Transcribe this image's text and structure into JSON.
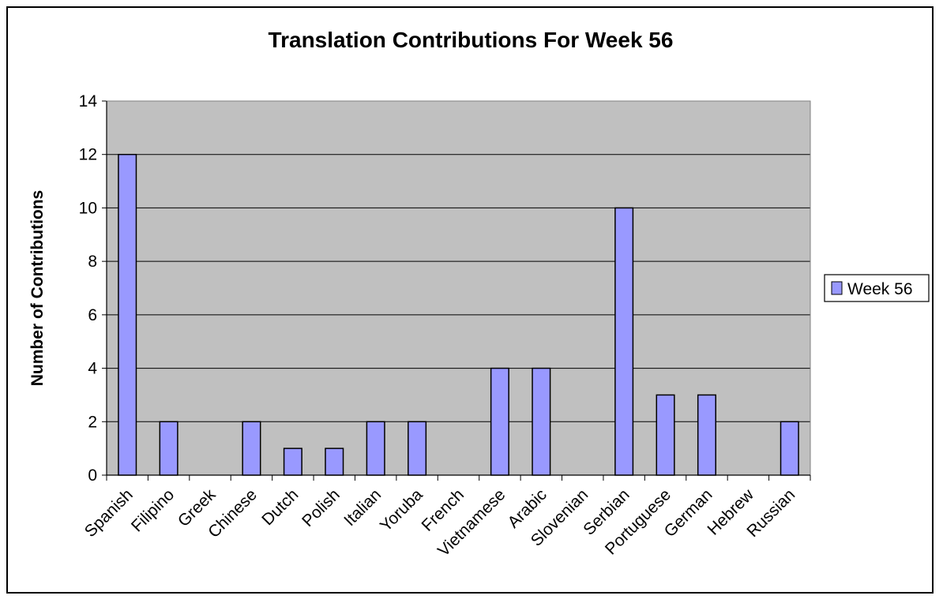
{
  "chart_data": {
    "type": "bar",
    "title": "Translation Contributions For Week 56",
    "xlabel": "",
    "ylabel": "Number of Contributions",
    "categories": [
      "Spanish",
      "Filipino",
      "Greek",
      "Chinese",
      "Dutch",
      "Polish",
      "Italian",
      "Yoruba",
      "French",
      "Vietnamese",
      "Arabic",
      "Slovenian",
      "Serbian",
      "Portuguese",
      "German",
      "Hebrew",
      "Russian"
    ],
    "series": [
      {
        "name": "Week 56",
        "values": [
          12,
          2,
          0,
          2,
          1,
          1,
          2,
          2,
          0,
          4,
          4,
          0,
          10,
          3,
          3,
          0,
          2
        ]
      }
    ],
    "ylim": [
      0,
      14
    ],
    "yticks": [
      0,
      2,
      4,
      6,
      8,
      10,
      12,
      14
    ],
    "grid": true,
    "legend_position": "right",
    "colors": {
      "bar_fill": "#9999ff",
      "plot_background": "#c0c0c0",
      "gridline": "#000000",
      "bar_stroke": "#000000"
    }
  }
}
